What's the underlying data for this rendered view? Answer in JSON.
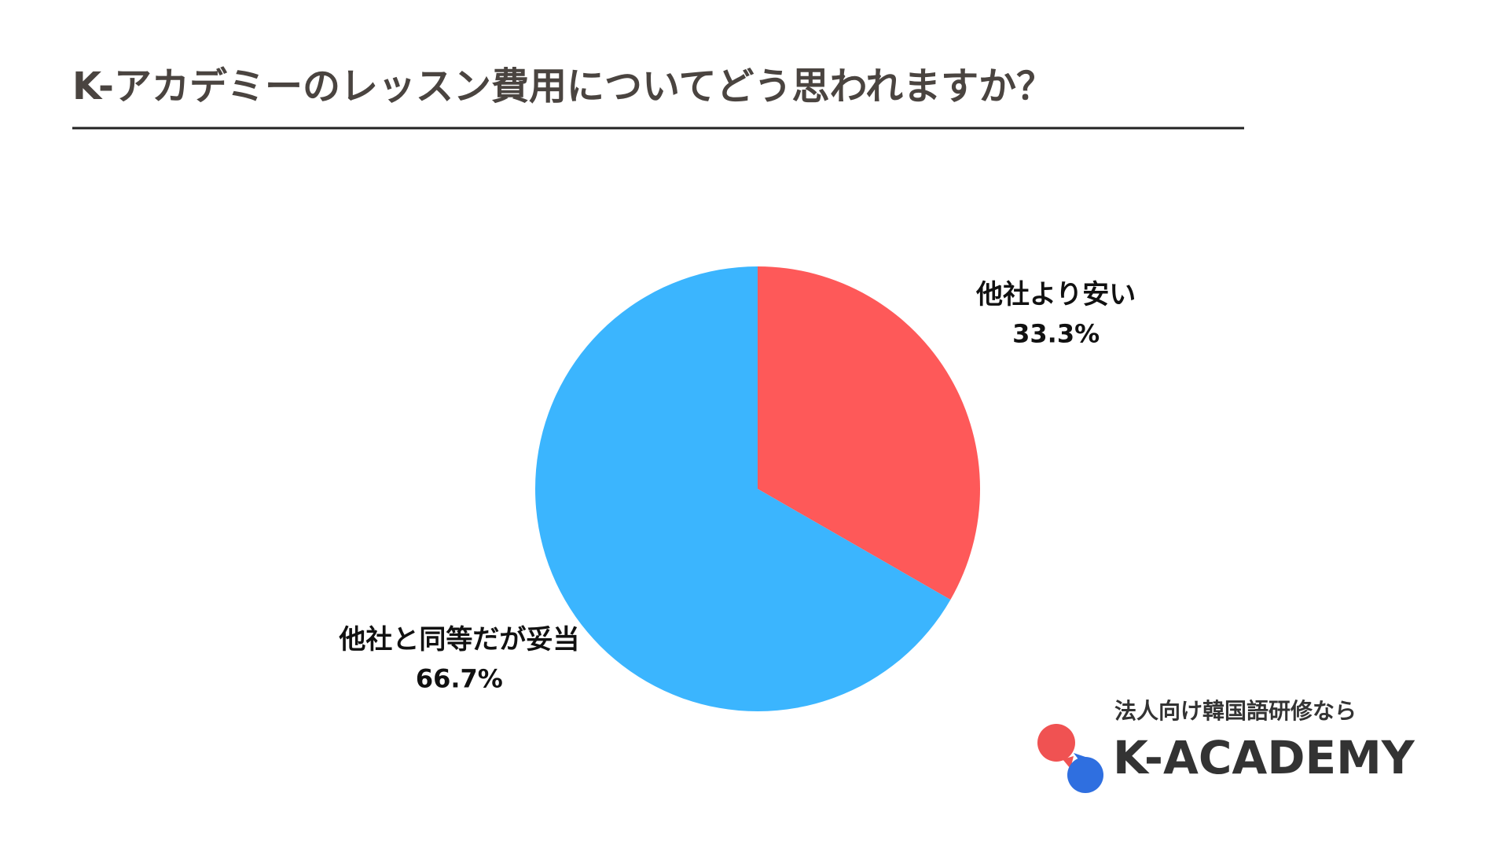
{
  "chart_data": {
    "type": "pie",
    "title": "K-アカデミーのレッスン費用についてどう思われますか？",
    "categories": [
      "他社より安い",
      "他社と同等だが妥当"
    ],
    "values": [
      33.3,
      66.7
    ],
    "value_labels": [
      "33.3%",
      "66.7%"
    ],
    "colors": [
      "#fe5959",
      "#3bb5fe"
    ]
  },
  "logo": {
    "tagline": "法人向け韓国語研修なら",
    "name": "K-ACADEMY"
  }
}
